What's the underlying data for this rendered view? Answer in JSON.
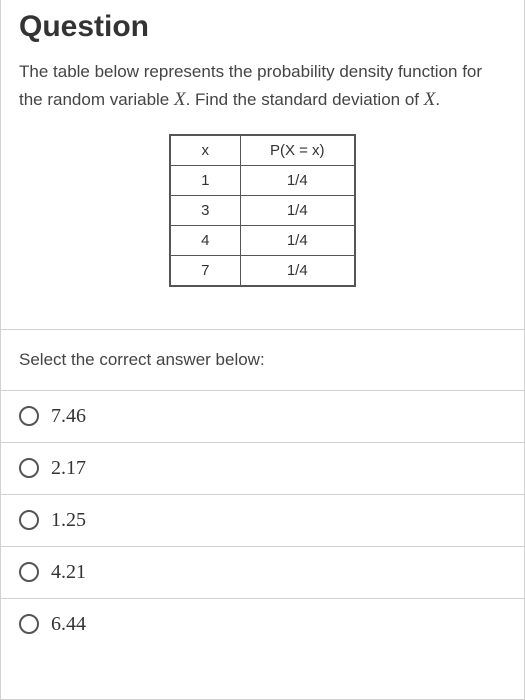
{
  "title": "Question",
  "prompt": {
    "part1": "The table below represents the probability density function for the random variable ",
    "var1": "X",
    "part2": ". Find the standard deviation of ",
    "var2": "X",
    "part3": "."
  },
  "table": {
    "headers": [
      "x",
      "P(X = x)"
    ],
    "rows": [
      [
        "1",
        "1/4"
      ],
      [
        "3",
        "1/4"
      ],
      [
        "4",
        "1/4"
      ],
      [
        "7",
        "1/4"
      ]
    ]
  },
  "selectPrompt": "Select the correct answer below:",
  "options": [
    "7.46",
    "2.17",
    "1.25",
    "4.21",
    "6.44"
  ],
  "colors": {
    "border": "#d0d0d0",
    "tableBorder": "#555",
    "text": "#333"
  }
}
